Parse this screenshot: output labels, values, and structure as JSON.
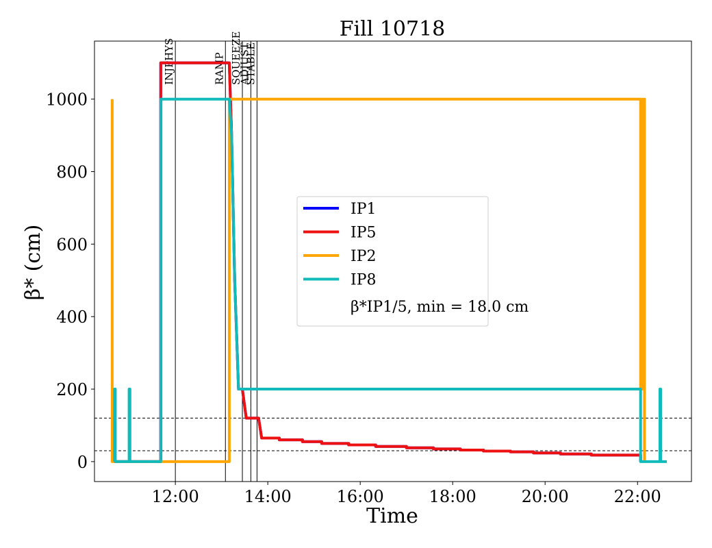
{
  "chart_data": {
    "type": "line",
    "title": "Fill 10718",
    "xlabel": "Time",
    "ylabel": "β* (cm)",
    "xlim": [
      "10:15",
      "23:10"
    ],
    "ylim": [
      -55,
      1160
    ],
    "xticks": [
      "12:00",
      "14:00",
      "16:00",
      "18:00",
      "20:00",
      "22:00"
    ],
    "yticks": [
      0,
      200,
      400,
      600,
      800,
      1000
    ],
    "grid": false,
    "legend_position": "center",
    "legend_note": "β*IP1/5, min = 18.0 cm",
    "hlines": [
      120,
      30
    ],
    "phases": [
      {
        "label": "INJPHYS",
        "time": "12:00"
      },
      {
        "label": "RAMP",
        "time": "13:05"
      },
      {
        "label": "SQUEEZE",
        "time": "13:27"
      },
      {
        "label": "ADJUST",
        "time": "13:38"
      },
      {
        "label": "STABLE",
        "time": "13:46"
      }
    ],
    "series": [
      {
        "name": "IP1",
        "color": "#0000ff",
        "points": [
          [
            "10:41",
            0
          ],
          [
            "11:41",
            0
          ],
          [
            "11:41",
            1100
          ],
          [
            "13:10",
            1100
          ],
          [
            "13:13",
            900
          ],
          [
            "13:17",
            500
          ],
          [
            "13:22",
            200
          ],
          [
            "13:27",
            200
          ],
          [
            "13:32",
            120
          ],
          [
            "13:48",
            120
          ],
          [
            "13:52",
            65
          ],
          [
            "14:15",
            65
          ],
          [
            "14:15",
            60
          ],
          [
            "14:45",
            60
          ],
          [
            "14:45",
            55
          ],
          [
            "15:10",
            55
          ],
          [
            "15:10",
            50
          ],
          [
            "15:45",
            50
          ],
          [
            "15:45",
            46
          ],
          [
            "16:20",
            46
          ],
          [
            "16:20",
            42
          ],
          [
            "17:00",
            42
          ],
          [
            "17:00",
            38
          ],
          [
            "17:35",
            38
          ],
          [
            "17:35",
            35
          ],
          [
            "18:10",
            35
          ],
          [
            "18:10",
            32
          ],
          [
            "18:40",
            32
          ],
          [
            "18:40",
            29
          ],
          [
            "19:15",
            29
          ],
          [
            "19:15",
            27
          ],
          [
            "19:45",
            27
          ],
          [
            "19:45",
            24
          ],
          [
            "20:20",
            24
          ],
          [
            "20:20",
            21
          ],
          [
            "21:00",
            21
          ],
          [
            "21:00",
            18
          ],
          [
            "22:04",
            18
          ],
          [
            "22:04",
            0
          ]
        ]
      },
      {
        "name": "IP5",
        "color": "#ee1111",
        "points": [
          [
            "10:41",
            0
          ],
          [
            "11:41",
            0
          ],
          [
            "11:41",
            1100
          ],
          [
            "13:10",
            1100
          ],
          [
            "13:13",
            900
          ],
          [
            "13:17",
            500
          ],
          [
            "13:22",
            200
          ],
          [
            "13:27",
            200
          ],
          [
            "13:32",
            120
          ],
          [
            "13:48",
            120
          ],
          [
            "13:52",
            65
          ],
          [
            "14:15",
            65
          ],
          [
            "14:15",
            60
          ],
          [
            "14:45",
            60
          ],
          [
            "14:45",
            55
          ],
          [
            "15:10",
            55
          ],
          [
            "15:10",
            50
          ],
          [
            "15:45",
            50
          ],
          [
            "15:45",
            46
          ],
          [
            "16:20",
            46
          ],
          [
            "16:20",
            42
          ],
          [
            "17:00",
            42
          ],
          [
            "17:00",
            38
          ],
          [
            "17:35",
            38
          ],
          [
            "17:35",
            35
          ],
          [
            "18:10",
            35
          ],
          [
            "18:10",
            32
          ],
          [
            "18:40",
            32
          ],
          [
            "18:40",
            29
          ],
          [
            "19:15",
            29
          ],
          [
            "19:15",
            27
          ],
          [
            "19:45",
            27
          ],
          [
            "19:45",
            24
          ],
          [
            "20:20",
            24
          ],
          [
            "20:20",
            21
          ],
          [
            "21:00",
            21
          ],
          [
            "21:00",
            18
          ],
          [
            "22:04",
            18
          ],
          [
            "22:04",
            0
          ]
        ]
      },
      {
        "name": "IP2",
        "color": "#ffa500",
        "points": [
          [
            "10:38",
            1000
          ],
          [
            "10:38",
            0
          ],
          [
            "13:10",
            0
          ],
          [
            "13:10",
            1000
          ],
          [
            "22:04",
            1000
          ],
          [
            "22:04",
            200
          ],
          [
            "22:05",
            1000
          ],
          [
            "22:06",
            200
          ],
          [
            "22:07",
            1000
          ],
          [
            "22:08",
            200
          ],
          [
            "22:09",
            1000
          ],
          [
            "22:09",
            0
          ]
        ]
      },
      {
        "name": "IP8",
        "color": "#11bbbb",
        "points": [
          [
            "10:41",
            0
          ],
          [
            "10:41",
            200
          ],
          [
            "10:42",
            200
          ],
          [
            "10:42",
            0
          ],
          [
            "11:00",
            0
          ],
          [
            "11:00",
            200
          ],
          [
            "11:01",
            200
          ],
          [
            "11:01",
            0
          ],
          [
            "11:41",
            0
          ],
          [
            "11:41",
            1000
          ],
          [
            "13:10",
            1000
          ],
          [
            "13:13",
            900
          ],
          [
            "13:17",
            500
          ],
          [
            "13:22",
            200
          ],
          [
            "22:04",
            200
          ],
          [
            "22:04",
            0
          ],
          [
            "22:29",
            0
          ],
          [
            "22:29",
            200
          ],
          [
            "22:30",
            200
          ],
          [
            "22:30",
            0
          ],
          [
            "22:38",
            0
          ]
        ]
      }
    ]
  }
}
